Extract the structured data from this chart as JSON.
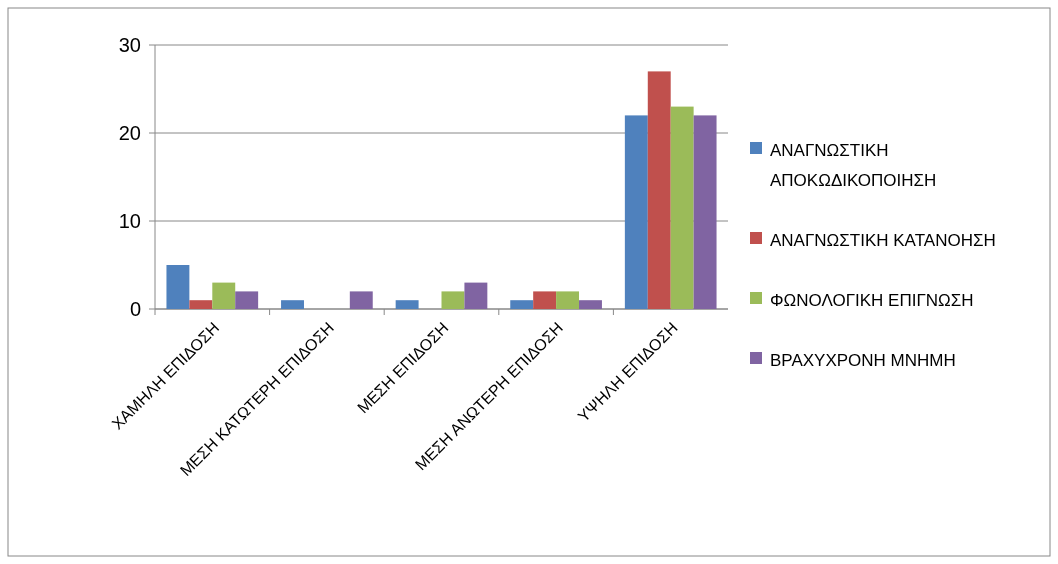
{
  "chart_data": {
    "type": "bar",
    "categories": [
      "ΧΑΜΗΛΗ ΕΠΙΔΟΣΗ",
      "ΜΕΣΗ ΚΑΤΩΤΕΡΗ ΕΠΙΔΟΣΗ",
      "ΜΕΣΗ ΕΠΙΔΟΣΗ",
      "ΜΕΣΗ ΑΝΩΤΕΡΗ ΕΠΙΔΟΣΗ",
      "ΥΨΗΛΗ ΕΠΙΔΟΣΗ"
    ],
    "series": [
      {
        "name": "ΑΝΑΓΝΩΣΤΙΚΗ ΑΠΟΚΩΔΙΚΟΠΟΙΗΣΗ",
        "color": "#4f81bd",
        "values": [
          5,
          1,
          1,
          1,
          22
        ]
      },
      {
        "name": "ΑΝΑΓΝΩΣΤΙΚΗ ΚΑΤΑΝΟΗΣΗ",
        "color": "#c0504d",
        "values": [
          1,
          0,
          0,
          2,
          27
        ]
      },
      {
        "name": "ΦΩΝΟΛΟΓΙΚΗ ΕΠΙΓΝΩΣΗ",
        "color": "#9bbb59",
        "values": [
          3,
          0,
          2,
          2,
          23
        ]
      },
      {
        "name": "ΒΡΑΧΥΧΡΟΝΗ ΜΝΗΜΗ",
        "color": "#8064a2",
        "values": [
          2,
          2,
          3,
          1,
          22
        ]
      }
    ],
    "ylim": [
      0,
      30
    ],
    "yticks": [
      0,
      10,
      20,
      30
    ],
    "grid": "y",
    "legend": "right"
  }
}
